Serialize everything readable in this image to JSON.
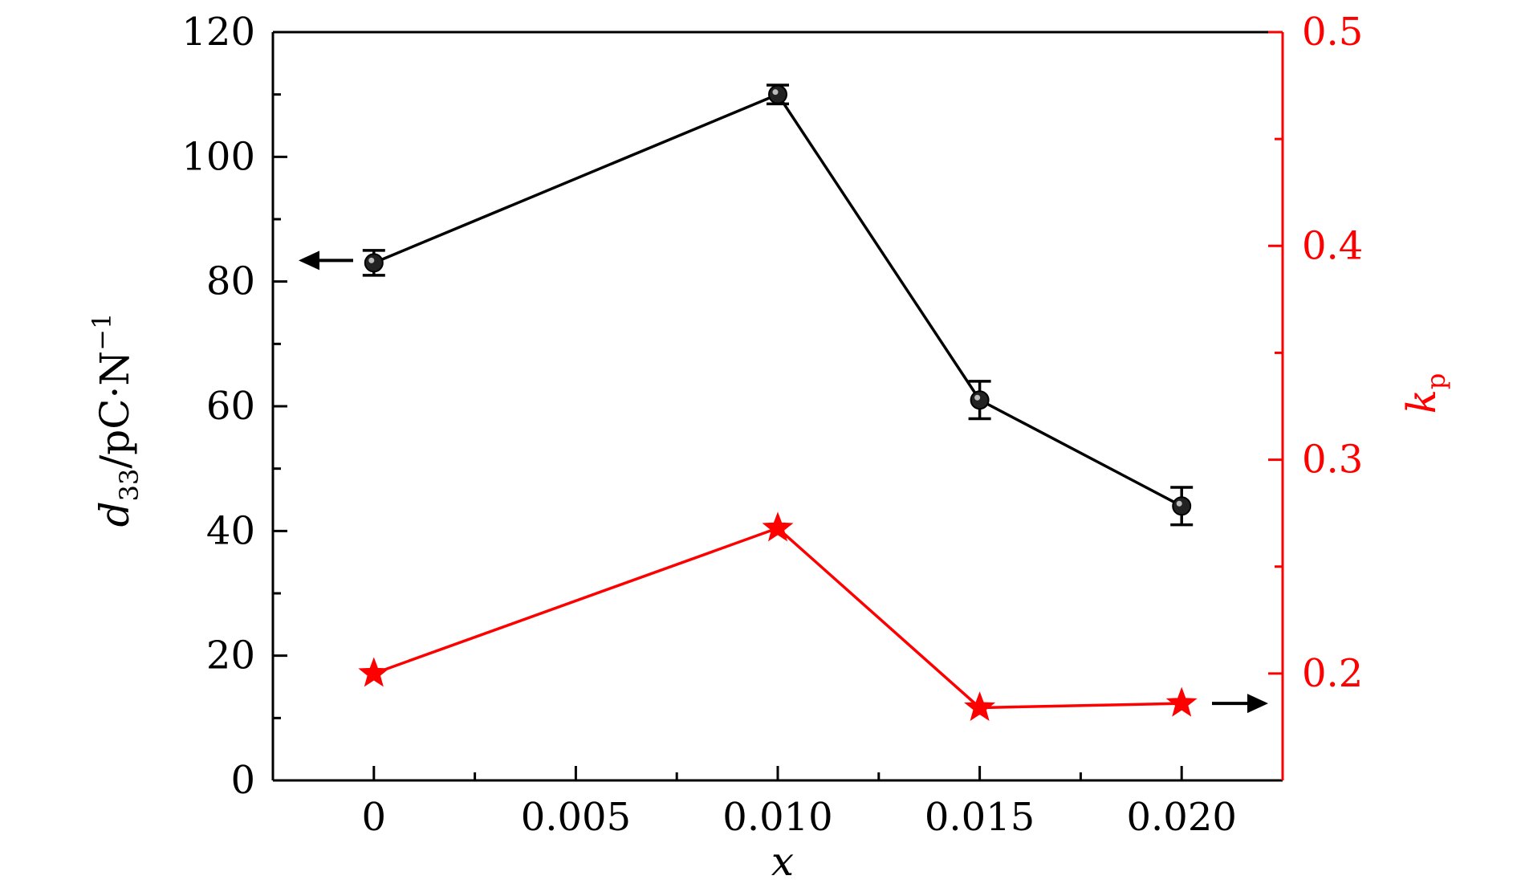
{
  "chart_data": {
    "type": "line",
    "x_values": [
      0,
      0.01,
      0.015,
      0.02
    ],
    "x_ticks": [
      0,
      0.005,
      0.01,
      0.015,
      0.02
    ],
    "x_tick_labels": [
      "0",
      "0.005",
      "0.010",
      "0.015",
      "0.020"
    ],
    "xlim": [
      -0.0025,
      0.0225
    ],
    "xlabel": "x",
    "left_axis": {
      "ylabel_main": "d",
      "ylabel_sub": "33",
      "ylabel_rest": "/pC·N",
      "ylabel_sup": "−1",
      "ylim": [
        0,
        120
      ],
      "ticks": [
        0,
        20,
        40,
        60,
        80,
        100,
        120
      ],
      "tick_labels": [
        "0",
        "20",
        "40",
        "60",
        "80",
        "100",
        "120"
      ],
      "color": "#000000"
    },
    "right_axis": {
      "ylabel_main": "k",
      "ylabel_sub": "p",
      "ylim": [
        0.15,
        0.5
      ],
      "ticks": [
        0.2,
        0.3,
        0.4,
        0.5
      ],
      "tick_labels": [
        "0.2",
        "0.3",
        "0.4",
        "0.5"
      ],
      "color": "#ff0000"
    },
    "series": [
      {
        "axis": "left",
        "marker": "circle",
        "color": "#000000",
        "values": [
          83,
          110,
          61,
          44
        ],
        "error": [
          2,
          1.5,
          3,
          3
        ]
      },
      {
        "axis": "right",
        "marker": "star",
        "color": "#ff0000",
        "values": [
          0.2,
          0.268,
          0.184,
          0.186
        ]
      }
    ],
    "annotations": [
      {
        "type": "arrow",
        "direction": "left",
        "points_to": "left_axis"
      },
      {
        "type": "arrow",
        "direction": "right",
        "points_to": "right_axis"
      }
    ],
    "grid": false,
    "legend": "none"
  }
}
